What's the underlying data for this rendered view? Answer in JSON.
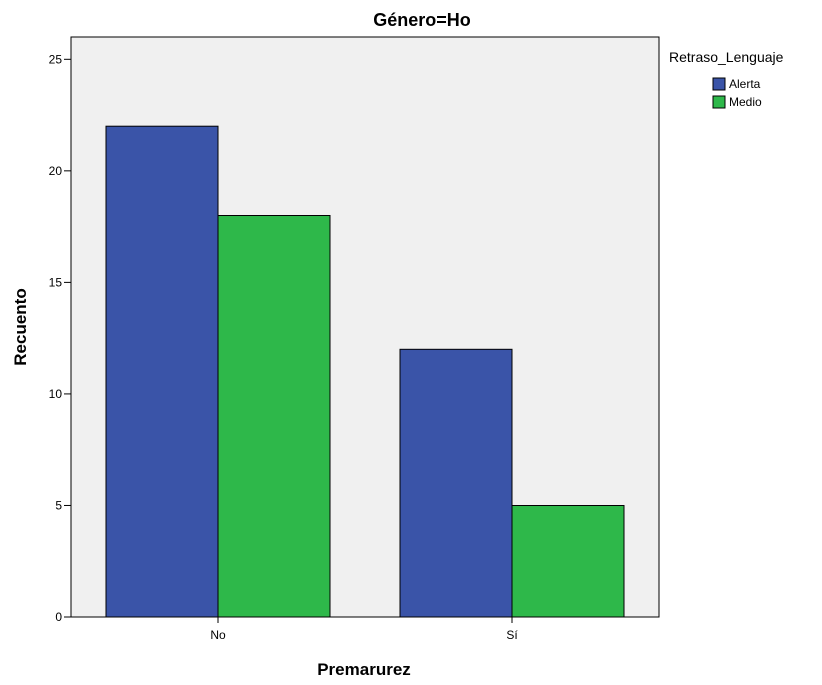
{
  "chart_data": {
    "type": "bar",
    "title": "Género=Ho",
    "xlabel": "Premarurez",
    "ylabel": "Recuento",
    "categories": [
      "No",
      "Sí"
    ],
    "series": [
      {
        "name": "Alerta",
        "values": [
          22,
          12
        ],
        "color": "#3A54A8"
      },
      {
        "name": "Medio",
        "values": [
          18,
          5
        ],
        "color": "#2EB84A"
      }
    ],
    "ylim": [
      0,
      26
    ],
    "yticks": [
      0,
      5,
      10,
      15,
      20,
      25
    ],
    "grid": false,
    "plot_background": "#F0F0F0",
    "legend": {
      "title": "Retraso_Lenguaje",
      "placement": "top-right outside"
    }
  }
}
